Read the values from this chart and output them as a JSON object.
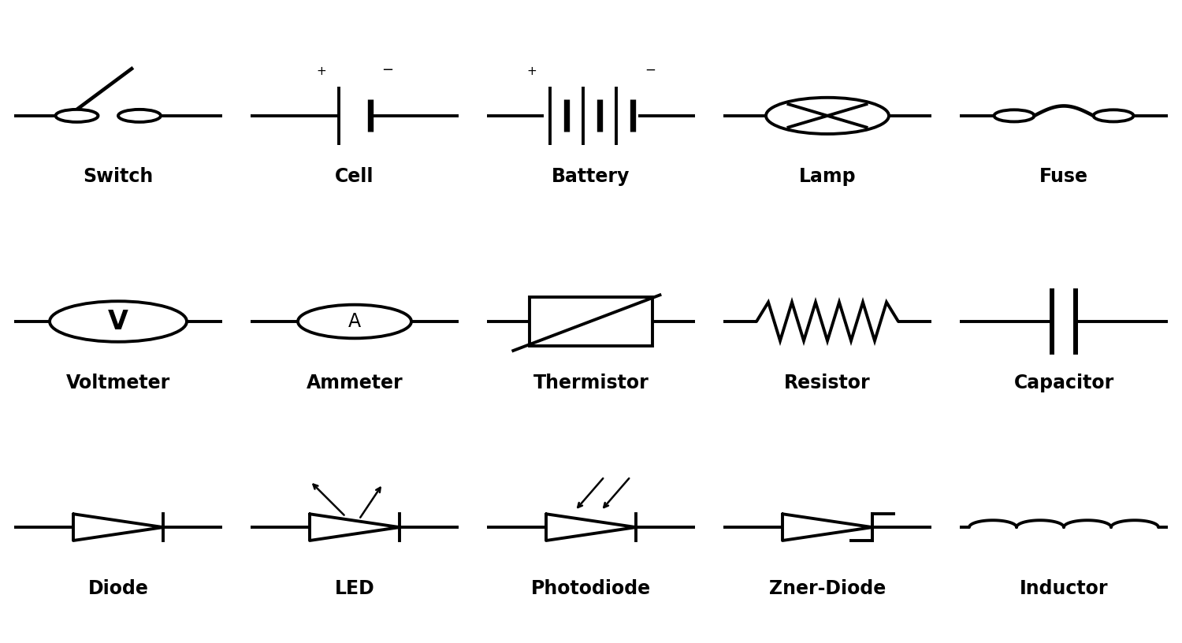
{
  "background": "#ffffff",
  "line_color": "#000000",
  "line_width": 2.8,
  "labels": {
    "row1": [
      "Switch",
      "Cell",
      "Battery",
      "Lamp",
      "Fuse"
    ],
    "row2": [
      "Voltmeter",
      "Ammeter",
      "Thermistor",
      "Resistor",
      "Capacitor"
    ],
    "row3": [
      "Diode",
      "LED",
      "Photodiode",
      "Zner-Diode",
      "Inductor"
    ]
  },
  "label_fontsize": 17,
  "cols": [
    0.1,
    0.3,
    0.5,
    0.7,
    0.9
  ],
  "rows": [
    0.82,
    0.5,
    0.18
  ],
  "half": 0.088
}
